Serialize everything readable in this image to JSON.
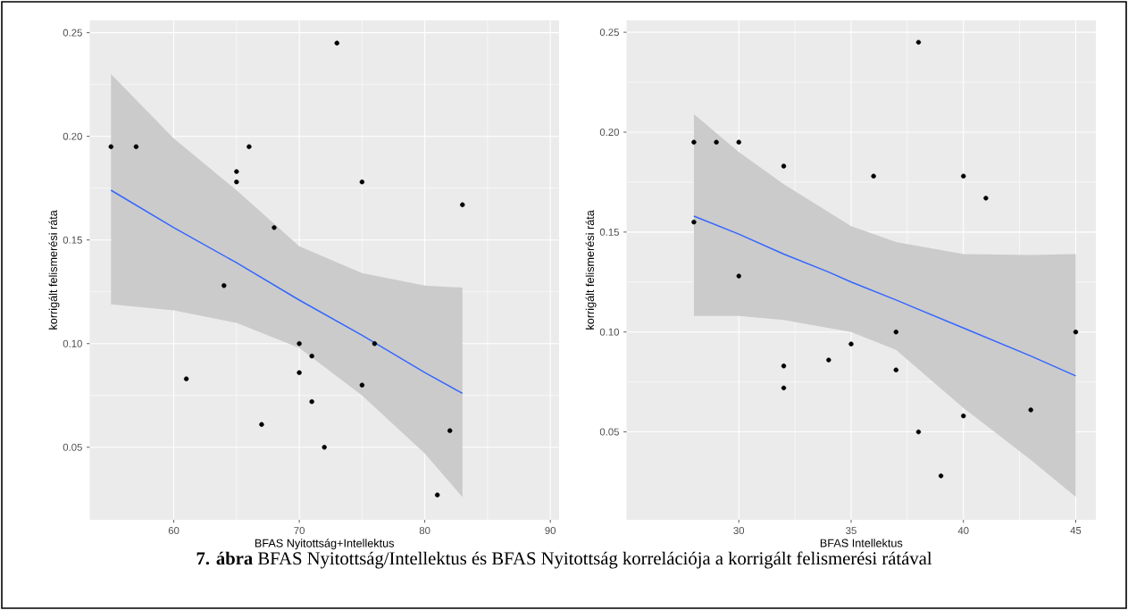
{
  "chart_data": [
    {
      "type": "scatter",
      "xlabel": "BFAS Nyitottság+Intellektus",
      "ylabel": "korrigált felismerési ráta",
      "xlim": [
        53.3,
        90.7
      ],
      "ylim": [
        0.015,
        0.256
      ],
      "xticks": [
        60,
        70,
        80,
        90
      ],
      "yticks": [
        {
          "value": 0.05,
          "label": "0.05"
        },
        {
          "value": 0.1,
          "label": "0.10"
        },
        {
          "value": 0.15,
          "label": "0.15"
        },
        {
          "value": 0.2,
          "label": "0.20"
        },
        {
          "value": 0.25,
          "label": "0.25"
        }
      ],
      "grid": true,
      "annotations": [
        "**7. ábra** BFAS Nyitottság/Intellektus és BFAS Nyitottság korrelációja a korrigált felismerési rátával"
      ],
      "series": [
        {
          "marker": "circle",
          "color": "#000000",
          "x": [
            55,
            57,
            65,
            65,
            66,
            68,
            64,
            61,
            67,
            70,
            70,
            73,
            75,
            83,
            71,
            76,
            75,
            71,
            72,
            82,
            81
          ],
          "values": [
            0.195,
            0.195,
            0.183,
            0.178,
            0.195,
            0.156,
            0.128,
            0.083,
            0.061,
            0.1,
            0.086,
            0.245,
            0.178,
            0.167,
            0.094,
            0.1,
            0.08,
            0.072,
            0.05,
            0.058,
            0.027
          ]
        },
        {
          "type": "line",
          "color": "#3366ff",
          "x": [
            55,
            60,
            65,
            70,
            75,
            80,
            83
          ],
          "values": [
            0.174,
            0.156,
            0.139,
            0.121,
            0.104,
            0.086,
            0.076
          ],
          "lower": [
            0.119,
            0.116,
            0.11,
            0.098,
            0.075,
            0.047,
            0.026
          ],
          "upper": [
            0.23,
            0.199,
            0.174,
            0.147,
            0.134,
            0.128,
            0.127
          ]
        }
      ]
    },
    {
      "type": "scatter",
      "xlabel": "BFAS Intellektus",
      "ylabel": "korrigált felismerési ráta",
      "xlim": [
        25.0,
        45.9
      ],
      "ylim": [
        0.006,
        0.256
      ],
      "xticks": [
        30,
        35,
        40,
        45
      ],
      "yticks": [
        {
          "value": 0.05,
          "label": "0.05"
        },
        {
          "value": 0.1,
          "label": "0.10"
        },
        {
          "value": 0.15,
          "label": "0.15"
        },
        {
          "value": 0.2,
          "label": "0.20"
        },
        {
          "value": 0.25,
          "label": "0.25"
        }
      ],
      "grid": true,
      "series": [
        {
          "marker": "circle",
          "color": "#000000",
          "x": [
            28,
            29,
            30,
            32,
            28,
            30,
            32,
            32,
            34,
            38,
            36,
            40,
            41,
            37,
            35,
            45,
            37,
            43,
            40,
            38,
            39
          ],
          "values": [
            0.195,
            0.195,
            0.195,
            0.183,
            0.155,
            0.128,
            0.083,
            0.072,
            0.086,
            0.245,
            0.178,
            0.178,
            0.167,
            0.1,
            0.094,
            0.1,
            0.081,
            0.061,
            0.058,
            0.05,
            0.028
          ]
        },
        {
          "type": "line",
          "color": "#3366ff",
          "x": [
            28,
            30,
            32,
            34,
            35,
            37,
            40,
            43,
            45
          ],
          "values": [
            0.158,
            0.149,
            0.139,
            0.13,
            0.125,
            0.116,
            0.102,
            0.088,
            0.078
          ],
          "lower": [
            0.108,
            0.108,
            0.106,
            0.102,
            0.1,
            0.091,
            0.062,
            0.036,
            0.0175
          ],
          "upper": [
            0.209,
            0.19,
            0.174,
            0.16,
            0.153,
            0.145,
            0.139,
            0.1385,
            0.139
          ]
        }
      ]
    }
  ]
}
